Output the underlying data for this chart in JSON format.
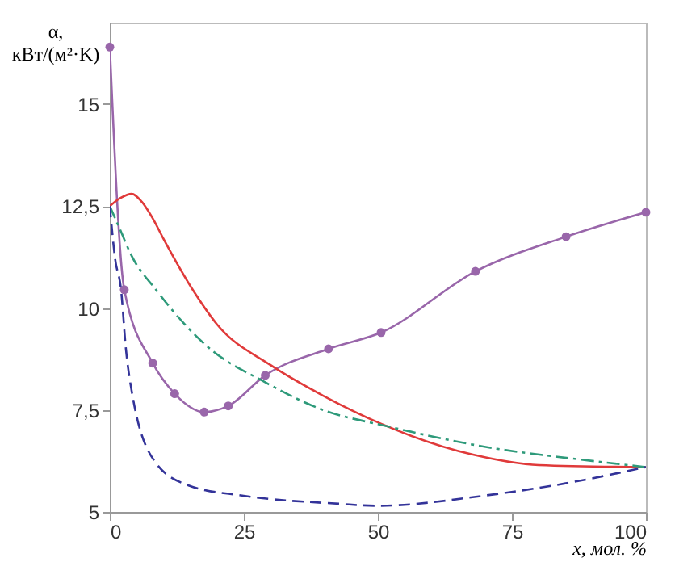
{
  "chart_data": {
    "type": "line",
    "xlabel": "x, мол. %",
    "ylabel": "α,\nкВт/(м²·K)",
    "xlim": [
      0,
      100
    ],
    "ylim": [
      5,
      17
    ],
    "xticks": [
      0,
      25,
      50,
      75,
      100
    ],
    "yticks": [
      5,
      {
        "value": 7.5,
        "label": "7,5"
      },
      10,
      {
        "value": 12.5,
        "label": "12,5"
      },
      15
    ],
    "grid": false,
    "series": [
      {
        "color": "#9966aa",
        "marker": "circle",
        "line_style": "solid",
        "x": [
          0,
          2.7,
          8,
          12.1,
          17.6,
          22.1,
          29,
          40.8,
          50.6,
          68.2,
          85.1,
          100
        ],
        "values": [
          16.4,
          10.45,
          8.65,
          7.9,
          7.45,
          7.6,
          8.35,
          9.0,
          9.4,
          10.9,
          11.75,
          12.35
        ]
      },
      {
        "color": "#e03a3a",
        "marker": "none",
        "line_style": "solid",
        "x": [
          0,
          2,
          4.1,
          6,
          8,
          10,
          15.7,
          20,
          30,
          39.8,
          50.8,
          67.9,
          80,
          100
        ],
        "values": [
          12.5,
          12.7,
          12.8,
          12.6,
          12.2,
          11.7,
          10.4,
          9.6,
          8.6,
          7.85,
          7.15,
          6.4,
          6.15,
          6.1
        ]
      },
      {
        "color": "#2e9a7a",
        "marker": "none",
        "line_style": "dashdot",
        "x": [
          0,
          2,
          4,
          8.6,
          18.7,
          28.7,
          39.8,
          51.8,
          69.9,
          90,
          100
        ],
        "values": [
          12.5,
          11.9,
          11.3,
          10.45,
          9.0,
          8.2,
          7.5,
          7.1,
          6.6,
          6.25,
          6.1
        ]
      },
      {
        "color": "#333399",
        "marker": "none",
        "line_style": "dashed",
        "x": [
          0,
          1,
          2.1,
          3,
          4.1,
          8.6,
          14.7,
          24.7,
          42.8,
          49.8,
          69.9,
          85,
          100
        ],
        "values": [
          12.5,
          11.2,
          10.45,
          9.0,
          7.95,
          6.2,
          5.65,
          5.4,
          5.2,
          5.15,
          5.4,
          5.7,
          6.1
        ]
      }
    ]
  }
}
